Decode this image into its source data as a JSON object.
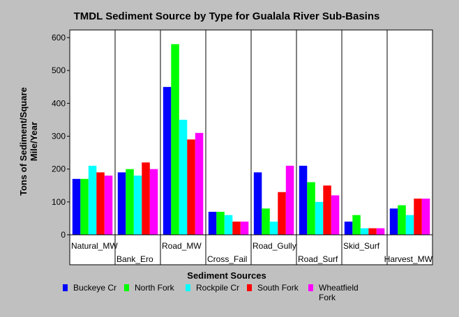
{
  "chart_data": {
    "type": "bar",
    "title": "TMDL Sediment Source by Type for Gualala River Sub-Basins",
    "xlabel": "Sediment Sources",
    "ylabel": "Tons of Sediment/Square Mile/Year",
    "ylabel_lines": [
      "Tons of Sediment/Square",
      "Mile/Year"
    ],
    "ylim": [
      0,
      600
    ],
    "yticks": [
      "0",
      "100",
      "200",
      "300",
      "400",
      "500",
      "600"
    ],
    "grid": false,
    "legend_position": "bottom",
    "categories": [
      "Natural_MW",
      "Bank_Ero",
      "Road_MW",
      "Cross_Fail",
      "Road_Gully",
      "Road_Surf",
      "Skid_Surf",
      "Harvest_MW"
    ],
    "series": [
      {
        "name": "Buckeye Cr",
        "color": "#0000ff",
        "values": [
          170,
          190,
          450,
          70,
          190,
          210,
          40,
          80
        ]
      },
      {
        "name": "North Fork",
        "color": "#00ff00",
        "values": [
          170,
          200,
          580,
          70,
          80,
          160,
          60,
          90
        ]
      },
      {
        "name": "Rockpile Cr",
        "color": "#00ffff",
        "values": [
          210,
          180,
          350,
          60,
          40,
          100,
          20,
          60
        ]
      },
      {
        "name": "South Fork",
        "color": "#ff0000",
        "values": [
          190,
          220,
          290,
          40,
          130,
          150,
          20,
          110
        ]
      },
      {
        "name": "Wheatfield Fork",
        "color": "#ff00ff",
        "values": [
          180,
          200,
          310,
          40,
          210,
          120,
          20,
          110
        ]
      }
    ]
  }
}
